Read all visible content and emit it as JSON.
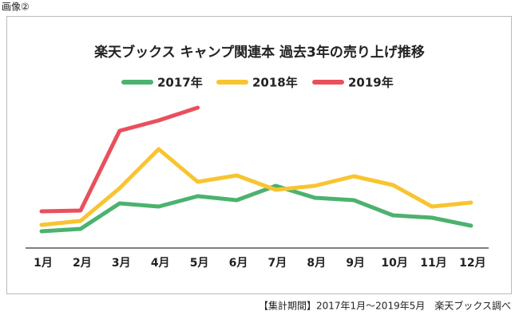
{
  "caption": "画像②",
  "chart_data": {
    "type": "line",
    "title": "楽天ブックス キャンプ関連本 過去3年の売り上げ推移",
    "categories": [
      "1月",
      "2月",
      "3月",
      "4月",
      "5月",
      "6月",
      "7月",
      "8月",
      "9月",
      "10月",
      "11月",
      "12月"
    ],
    "series": [
      {
        "name": "2017年",
        "color": "#4cb26e",
        "values": [
          10.5,
          12,
          28,
          26,
          32.5,
          30,
          39,
          31.5,
          30,
          20.5,
          19,
          14
        ]
      },
      {
        "name": "2018年",
        "color": "#f8c430",
        "values": [
          14.5,
          17,
          37.5,
          62,
          41.5,
          45.5,
          36.5,
          39,
          45,
          39.5,
          26,
          28.5
        ]
      },
      {
        "name": "2019年",
        "color": "#e9505c",
        "values": [
          23,
          23.5,
          73.5,
          80,
          88,
          null,
          null,
          null,
          null,
          null,
          null,
          null
        ]
      }
    ],
    "ylim": [
      0,
      100
    ],
    "note": "【集計期間】2017年1月～2019年5月　楽天ブックス調べ"
  }
}
